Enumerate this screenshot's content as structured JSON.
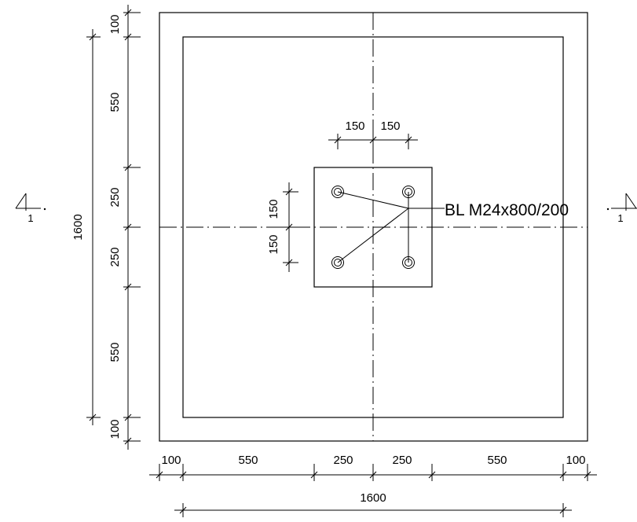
{
  "dimensions": {
    "bottom": [
      "100",
      "550",
      "250",
      "250",
      "550",
      "100"
    ],
    "bottom_total": "1600",
    "left": [
      "100",
      "550",
      "250",
      "250",
      "550",
      "100"
    ],
    "left_total": "1600",
    "bolt_spacing_x": [
      "150",
      "150"
    ],
    "bolt_spacing_y": [
      "150",
      "150"
    ]
  },
  "callout": {
    "bolt_label": "BL M24x800/200"
  },
  "section_markers": {
    "left": "1",
    "right": "1"
  }
}
